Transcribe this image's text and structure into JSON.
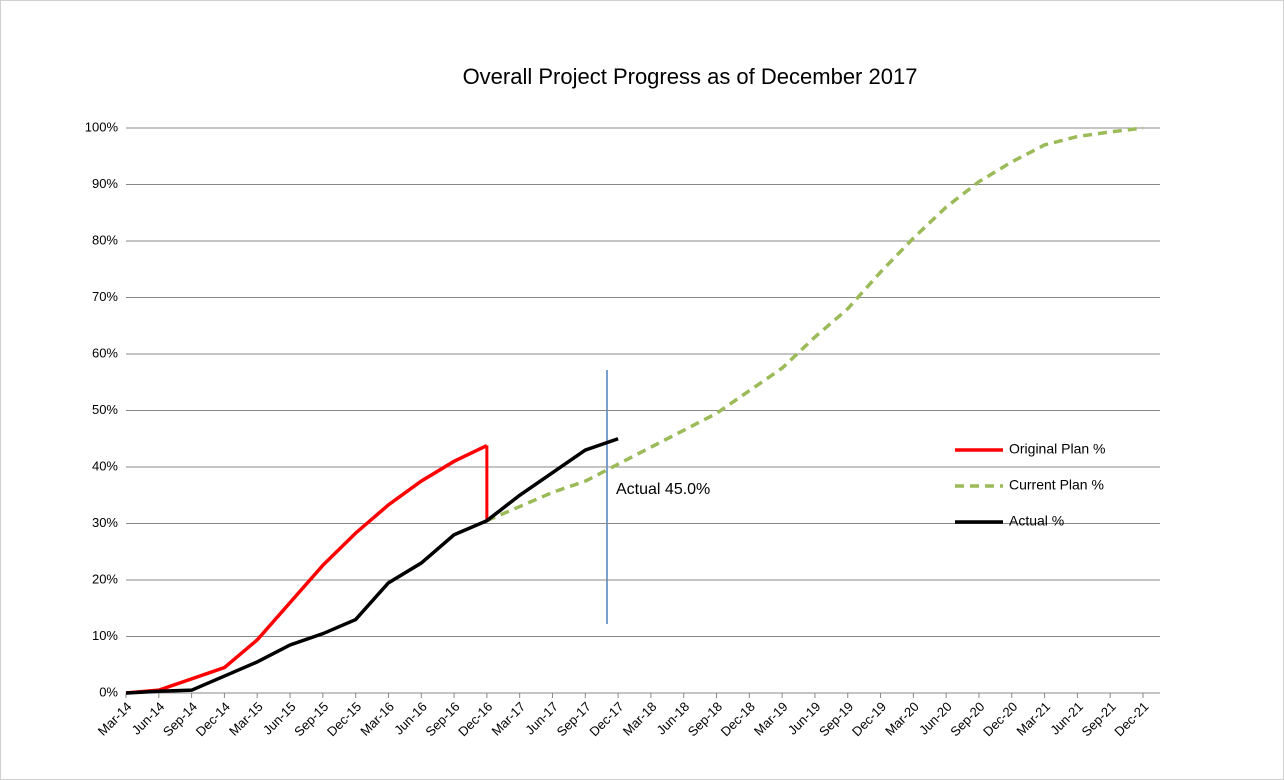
{
  "chart_data": {
    "type": "line",
    "title": "Overall Project Progress as of December  2017",
    "annotation": "Actual  45.0%",
    "categories": [
      "Mar-14",
      "Jun-14",
      "Sep-14",
      "Dec-14",
      "Mar-15",
      "Jun-15",
      "Sep-15",
      "Dec-15",
      "Mar-16",
      "Jun-16",
      "Sep-16",
      "Dec-16",
      "Mar-17",
      "Jun-17",
      "Sep-17",
      "Dec-17",
      "Mar-18",
      "Jun-18",
      "Sep-18",
      "Dec-18",
      "Mar-19",
      "Jun-19",
      "Sep-19",
      "Dec-19",
      "Mar-20",
      "Jun-20",
      "Sep-20",
      "Dec-20",
      "Mar-21",
      "Jun-21",
      "Sep-21",
      "Dec-21"
    ],
    "series": [
      {
        "name": "Original Plan %",
        "color": "#ff0000",
        "dash": false,
        "values": [
          0,
          0.5,
          2.5,
          4.5,
          9.4,
          16,
          22.6,
          28.3,
          33.3,
          37.5,
          41,
          43.8,
          null,
          null,
          null,
          null,
          null,
          null,
          null,
          null,
          null,
          null,
          null,
          null,
          null,
          null,
          null,
          null,
          null,
          null,
          null,
          null
        ]
      },
      {
        "name": "Current Plan %",
        "color": "#9bbb59",
        "dash": true,
        "values": [
          null,
          null,
          null,
          null,
          null,
          null,
          null,
          null,
          null,
          null,
          null,
          30.5,
          33,
          35.5,
          37.5,
          40.5,
          43.5,
          46.5,
          49.5,
          53.5,
          57.5,
          63,
          68,
          74.5,
          80.5,
          86,
          90.5,
          94,
          97,
          98.5,
          99.3,
          100
        ]
      },
      {
        "name": "Actual %",
        "color": "#000000",
        "dash": false,
        "values": [
          0,
          0.3,
          0.5,
          3,
          5.5,
          8.5,
          10.5,
          13,
          19.5,
          23,
          28,
          30.5,
          35,
          39,
          43,
          45,
          null,
          null,
          null,
          null,
          null,
          null,
          null,
          null,
          null,
          null,
          null,
          null,
          null,
          null,
          null,
          null
        ]
      }
    ],
    "ylim": [
      0,
      100
    ],
    "yticks": [
      {
        "value": 0,
        "label": "0%"
      },
      {
        "value": 10,
        "label": "10%"
      },
      {
        "value": 20,
        "label": "20%"
      },
      {
        "value": 30,
        "label": "30%"
      },
      {
        "value": 40,
        "label": "40%"
      },
      {
        "value": 50,
        "label": "50%"
      },
      {
        "value": 60,
        "label": "60%"
      },
      {
        "value": 70,
        "label": "70%"
      },
      {
        "value": 80,
        "label": "80%"
      },
      {
        "value": 90,
        "label": "90%"
      },
      {
        "value": 100,
        "label": "100%"
      }
    ],
    "grid": true,
    "legend": "right"
  }
}
